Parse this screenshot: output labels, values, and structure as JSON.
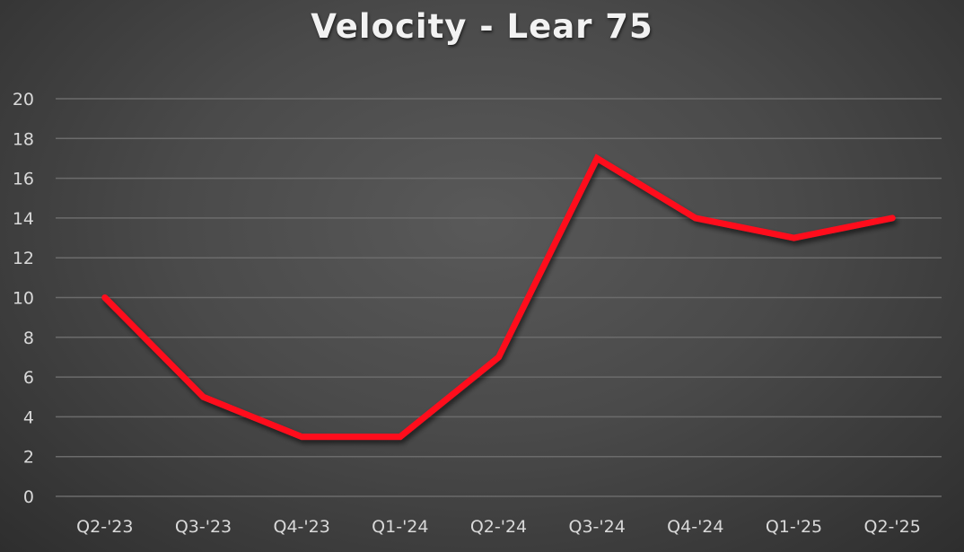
{
  "chart_data": {
    "type": "line",
    "title": "Velocity - Lear 75",
    "xlabel": "",
    "ylabel": "",
    "categories": [
      "Q2-'23",
      "Q3-'23",
      "Q4-'23",
      "Q1-'24",
      "Q2-'24",
      "Q3-'24",
      "Q4-'24",
      "Q1-'25",
      "Q2-'25"
    ],
    "series": [
      {
        "name": "Velocity",
        "color": "#ff0d1f",
        "values": [
          10,
          5,
          3,
          3,
          7,
          17,
          14,
          13,
          14
        ]
      }
    ],
    "ylim": [
      0,
      20
    ],
    "yticks": [
      0,
      2,
      4,
      6,
      8,
      10,
      12,
      14,
      16,
      18,
      20
    ],
    "grid": true,
    "legend": "none"
  },
  "colors": {
    "background": "#4a4a4a",
    "gridline": "#6b6b6b",
    "text": "#d9d9d9",
    "title": "#f2f2f2"
  }
}
